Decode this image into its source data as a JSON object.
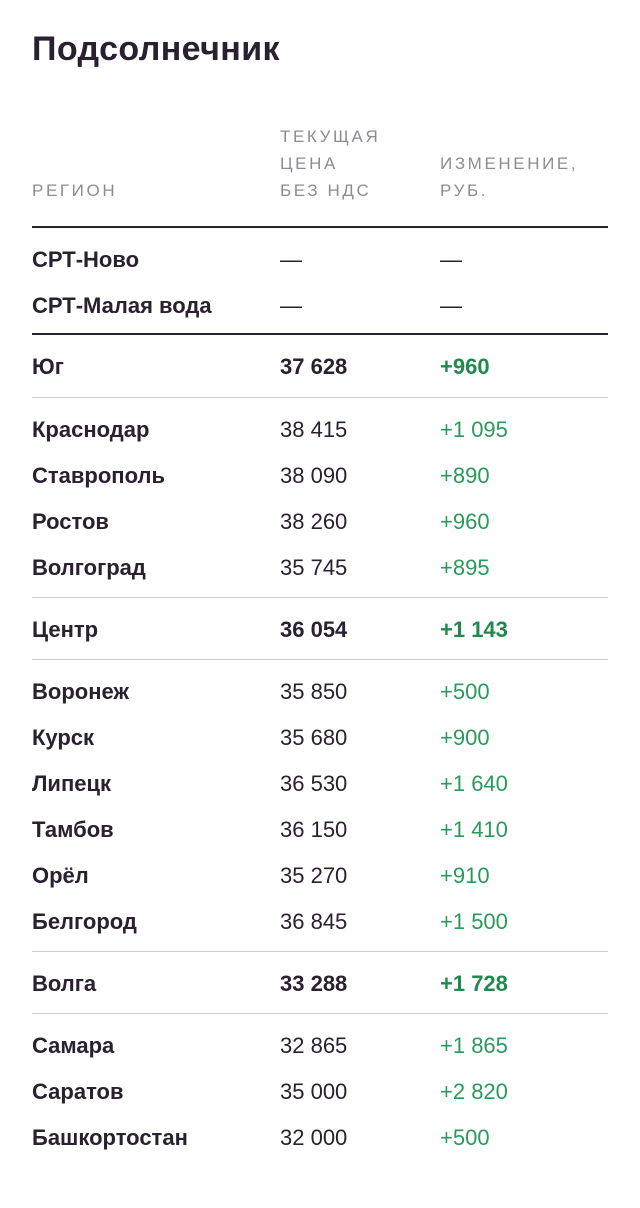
{
  "title": "Подсолнечник",
  "headers": {
    "region": "РЕГИОН",
    "price": "ТЕКУЩАЯ\nЦЕНА\nБЕЗ НДС",
    "change": "ИЗМЕНЕНИЕ,\nРУБ."
  },
  "rows": [
    {
      "region": "СРТ-Ново",
      "price": "—",
      "change": "—"
    },
    {
      "region": "СРТ-Малая вода",
      "price": "—",
      "change": "—"
    },
    {
      "region": "Юг",
      "price": "37 628",
      "change": "+960"
    },
    {
      "region": "Краснодар",
      "price": "38 415",
      "change": "+1 095"
    },
    {
      "region": "Ставрополь",
      "price": "38 090",
      "change": "+890"
    },
    {
      "region": "Ростов",
      "price": "38 260",
      "change": "+960"
    },
    {
      "region": "Волгоград",
      "price": "35 745",
      "change": "+895"
    },
    {
      "region": "Центр",
      "price": "36 054",
      "change": "+1 143"
    },
    {
      "region": "Воронеж",
      "price": "35 850",
      "change": "+500"
    },
    {
      "region": "Курск",
      "price": "35 680",
      "change": "+900"
    },
    {
      "region": "Липецк",
      "price": "36 530",
      "change": "+1 640"
    },
    {
      "region": "Тамбов",
      "price": "36 150",
      "change": "+1 410"
    },
    {
      "region": "Орёл",
      "price": "35 270",
      "change": "+910"
    },
    {
      "region": "Белгород",
      "price": "36 845",
      "change": "+1 500"
    },
    {
      "region": "Волга",
      "price": "33 288",
      "change": "+1 728"
    },
    {
      "region": "Самара",
      "price": "32 865",
      "change": "+1 865"
    },
    {
      "region": "Саратов",
      "price": "35 000",
      "change": "+2 820"
    },
    {
      "region": "Башкортостан",
      "price": "32 000",
      "change": "+500"
    }
  ],
  "colors": {
    "text": "#2a2030",
    "header": "#8f8a93",
    "positive": "#2a9a5c",
    "positive_bold": "#1f8a4e",
    "divider": "#cfcbd2"
  }
}
